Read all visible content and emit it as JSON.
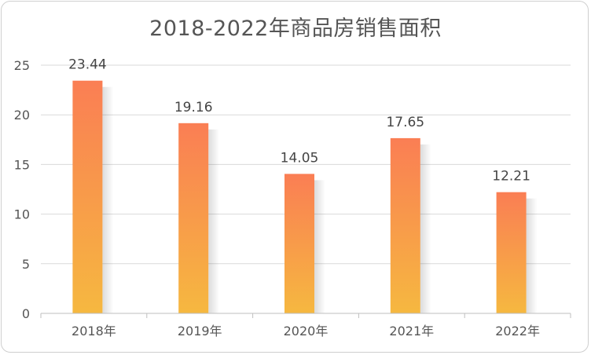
{
  "chart_data": {
    "type": "bar",
    "title": "2018-2022年商品房销售面积",
    "categories": [
      "2018年",
      "2019年",
      "2020年",
      "2021年",
      "2022年"
    ],
    "values": [
      23.44,
      19.16,
      14.05,
      17.65,
      12.21
    ],
    "data_labels": [
      "23.44",
      "19.16",
      "14.05",
      "17.65",
      "12.21"
    ],
    "xlabel": "",
    "ylabel": "",
    "ylim": [
      0,
      25
    ],
    "yticks": [
      0,
      5,
      10,
      15,
      20,
      25
    ],
    "grid": true,
    "legend": "none",
    "colors": {
      "bar_top": "#fa7e54",
      "bar_bottom": "#f6b840",
      "grid": "#d9d9d9",
      "axis": "#bfbfbf"
    }
  }
}
